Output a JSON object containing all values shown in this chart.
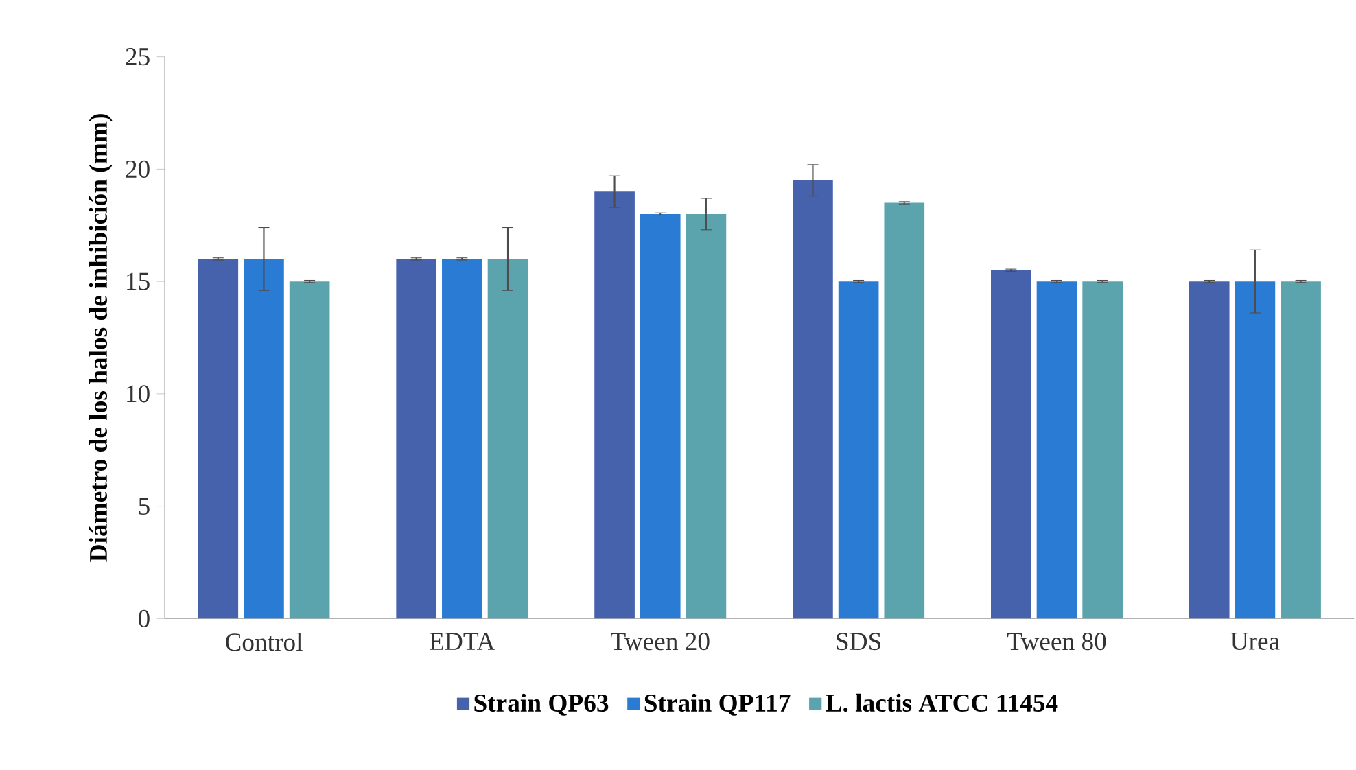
{
  "chart_data": {
    "type": "bar",
    "ylabel": "Diámetro de los halos de inhibición (mm)",
    "categories": [
      "Control",
      "EDTA",
      "Tween 20",
      "SDS",
      "Tween 80",
      "Urea"
    ],
    "series": [
      {
        "name": "Strain QP63",
        "color": "#4762ad",
        "values": [
          16,
          16,
          19,
          19.5,
          15.5,
          15
        ],
        "errors": [
          0.05,
          0.05,
          0.7,
          0.7,
          0.05,
          0.05
        ]
      },
      {
        "name": "Strain QP117",
        "color": "#2a7bd4",
        "values": [
          16,
          16,
          18,
          15,
          15,
          15
        ],
        "errors": [
          1.4,
          0.05,
          0.05,
          0.05,
          0.05,
          1.4
        ]
      },
      {
        "name": "L. lactis ATCC 11454",
        "color": "#5ba3ad",
        "values": [
          15,
          16,
          18,
          18.5,
          15,
          15
        ],
        "errors": [
          0.05,
          1.4,
          0.7,
          0.05,
          0.05,
          0.05
        ]
      }
    ],
    "ylim": [
      0,
      25
    ],
    "yticks": [
      0,
      5,
      10,
      15,
      20,
      25
    ],
    "grid": false,
    "legend": "bottom"
  }
}
